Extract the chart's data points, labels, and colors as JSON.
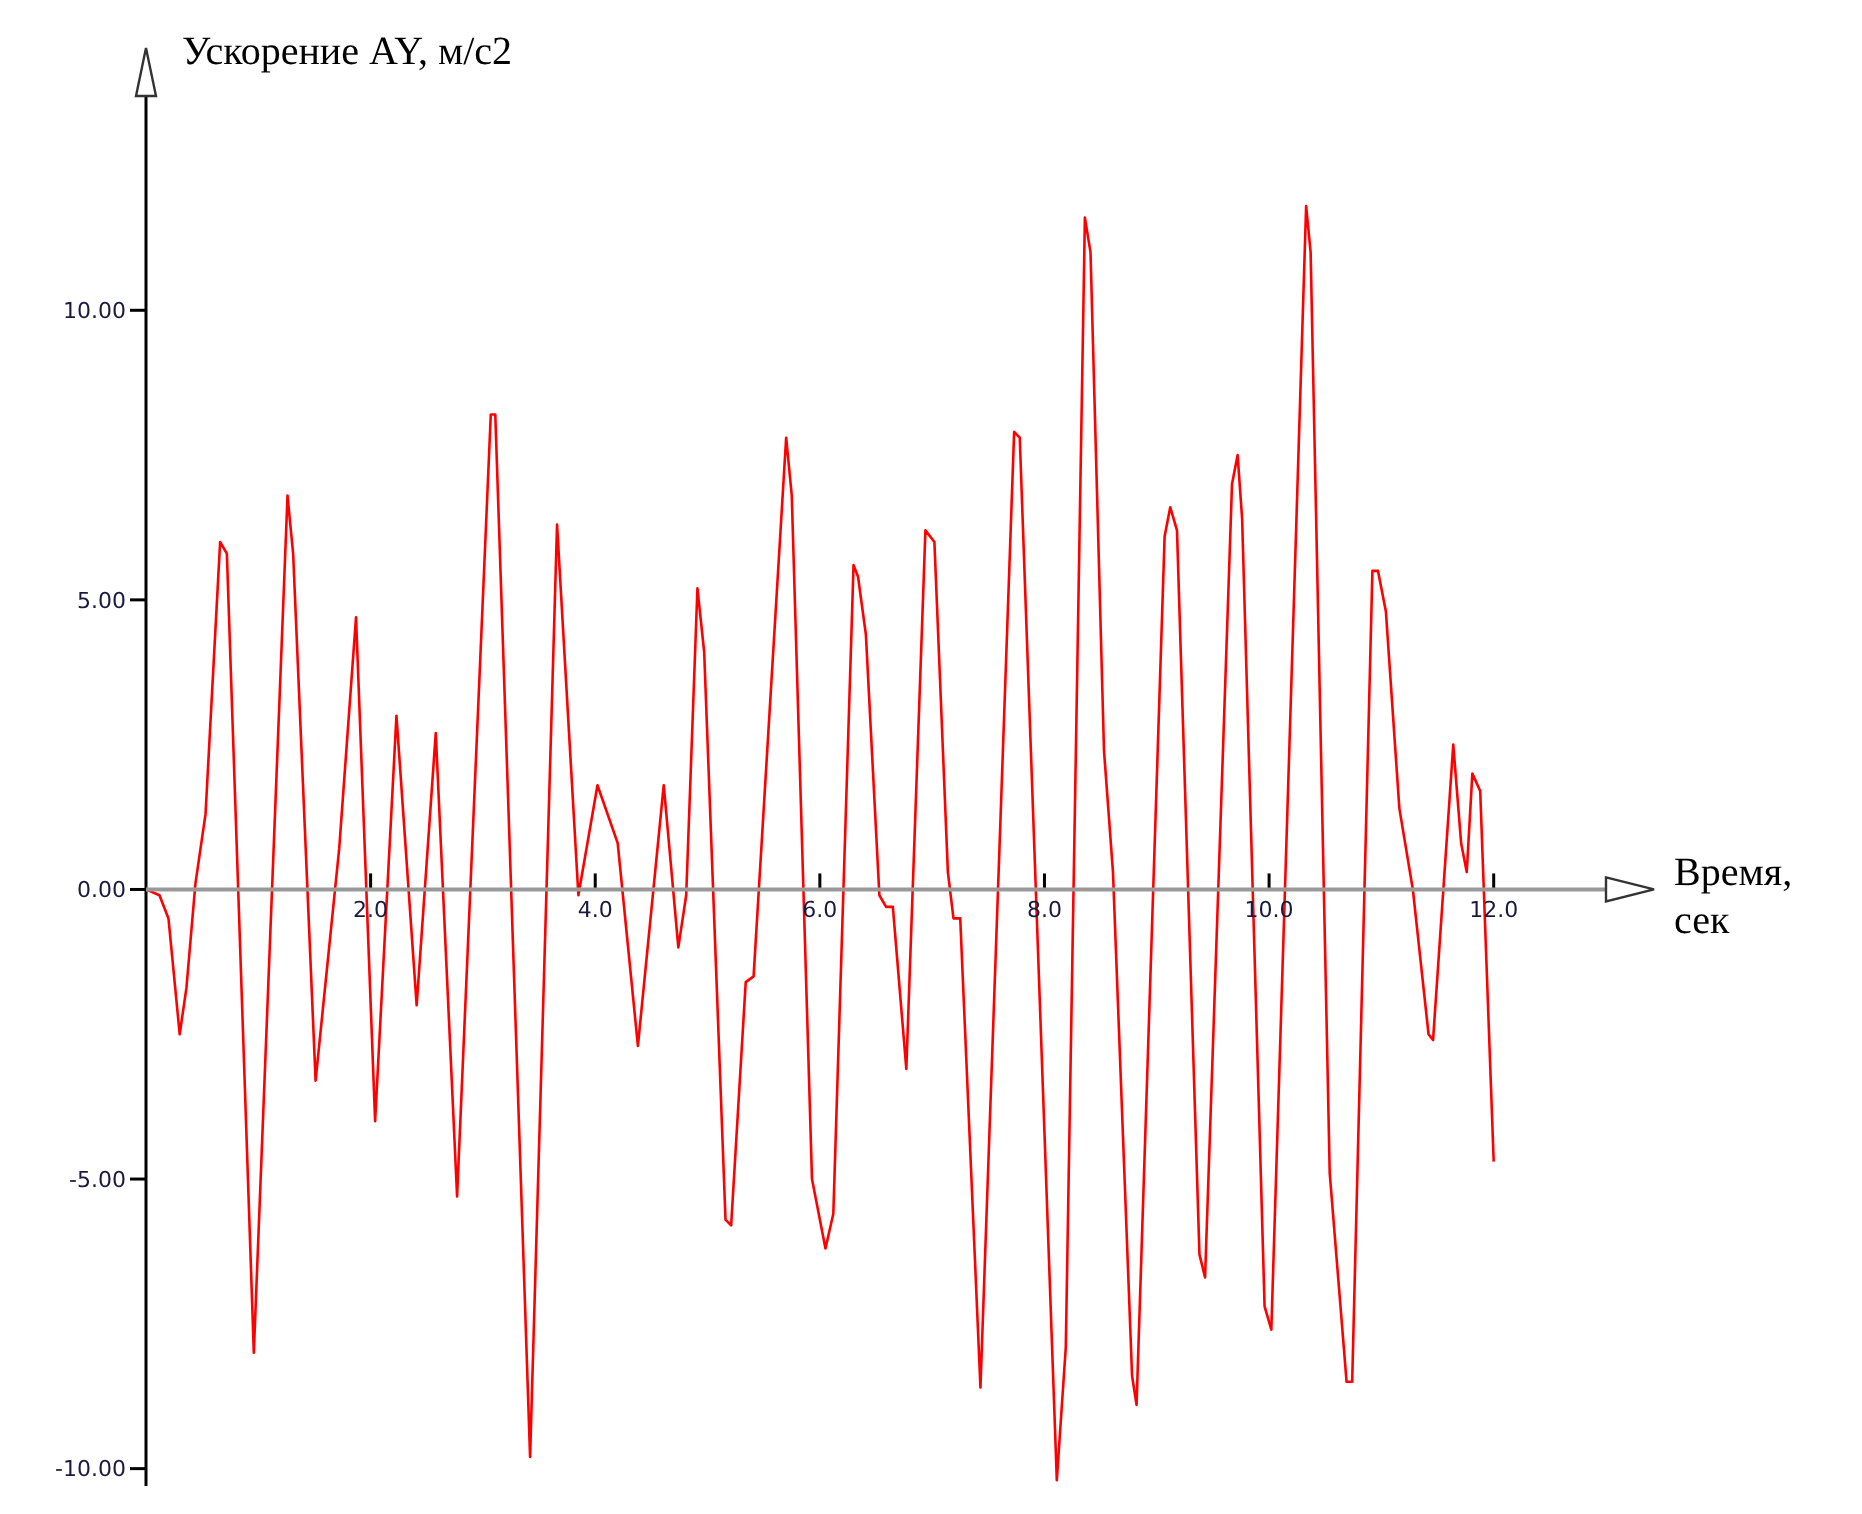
{
  "chart_data": {
    "type": "line",
    "ylabel": "Ускорение AY, м/с2",
    "xlabel": "Время, сек",
    "x": [
      0,
      0.12,
      0.2,
      0.3,
      0.36,
      0.44,
      0.53,
      0.66,
      0.72,
      0.96,
      1.26,
      1.31,
      1.51,
      1.72,
      1.87,
      2.04,
      2.23,
      2.41,
      2.58,
      2.77,
      3.07,
      3.11,
      3.42,
      3.66,
      3.85,
      4.02,
      4.2,
      4.38,
      4.61,
      4.74,
      4.81,
      4.91,
      4.97,
      5.16,
      5.21,
      5.34,
      5.41,
      5.7,
      5.75,
      5.93,
      6.05,
      6.12,
      6.3,
      6.34,
      6.41,
      6.53,
      6.59,
      6.65,
      6.77,
      6.94,
      7.02,
      7.14,
      7.19,
      7.25,
      7.43,
      7.73,
      7.78,
      8.11,
      8.19,
      8.36,
      8.41,
      8.53,
      8.61,
      8.78,
      8.82,
      9.07,
      9.12,
      9.18,
      9.38,
      9.43,
      9.67,
      9.72,
      9.76,
      9.96,
      10.02,
      10.33,
      10.37,
      10.54,
      10.69,
      10.74,
      10.92,
      10.97,
      11.04,
      11.16,
      11.28,
      11.42,
      11.46,
      11.64,
      11.71,
      11.76,
      11.81,
      11.88,
      12.0
    ],
    "values": [
      0,
      -0.1,
      -0.5,
      -2.5,
      -1.7,
      0.1,
      1.3,
      6.0,
      5.8,
      -8.0,
      6.8,
      5.8,
      -3.3,
      0.7,
      4.7,
      -4.0,
      3.0,
      -2.0,
      2.7,
      -5.3,
      8.2,
      8.2,
      -9.8,
      6.3,
      -0.1,
      1.8,
      0.8,
      -2.7,
      1.8,
      -1.0,
      -0.1,
      5.2,
      4.1,
      -5.7,
      -5.8,
      -1.6,
      -1.5,
      7.8,
      6.8,
      -5.0,
      -6.2,
      -5.6,
      5.6,
      5.4,
      4.4,
      -0.1,
      -0.3,
      -0.3,
      -3.1,
      6.2,
      6.0,
      0.3,
      -0.5,
      -0.5,
      -8.6,
      7.9,
      7.8,
      -10.2,
      -7.9,
      11.6,
      11.0,
      2.4,
      0.3,
      -8.4,
      -8.9,
      6.1,
      6.6,
      6.2,
      -6.3,
      -6.7,
      7.0,
      7.5,
      6.4,
      -7.2,
      -7.6,
      11.8,
      11.0,
      -4.9,
      -8.5,
      -8.5,
      5.5,
      5.5,
      4.8,
      1.4,
      0.0,
      -2.5,
      -2.6,
      2.5,
      0.8,
      0.3,
      2.0,
      1.7,
      -4.7
    ],
    "color": "#ff0000",
    "marker": "none",
    "line_style": "solid",
    "xlim": [
      0,
      13
    ],
    "ylim": [
      -10.3,
      13.7
    ],
    "xticks": [
      {
        "value": 2,
        "label": "2.0"
      },
      {
        "value": 4,
        "label": "4.0"
      },
      {
        "value": 6,
        "label": "6.0"
      },
      {
        "value": 8,
        "label": "8.0"
      },
      {
        "value": 10,
        "label": "10.0"
      },
      {
        "value": 12,
        "label": "12.0"
      }
    ],
    "yticks": [
      {
        "value": -10,
        "label": "-10.00"
      },
      {
        "value": -5,
        "label": "-5.00"
      },
      {
        "value": 0,
        "label": "0.00"
      },
      {
        "value": 5,
        "label": "5.00"
      },
      {
        "value": 10,
        "label": "10.00"
      }
    ]
  }
}
